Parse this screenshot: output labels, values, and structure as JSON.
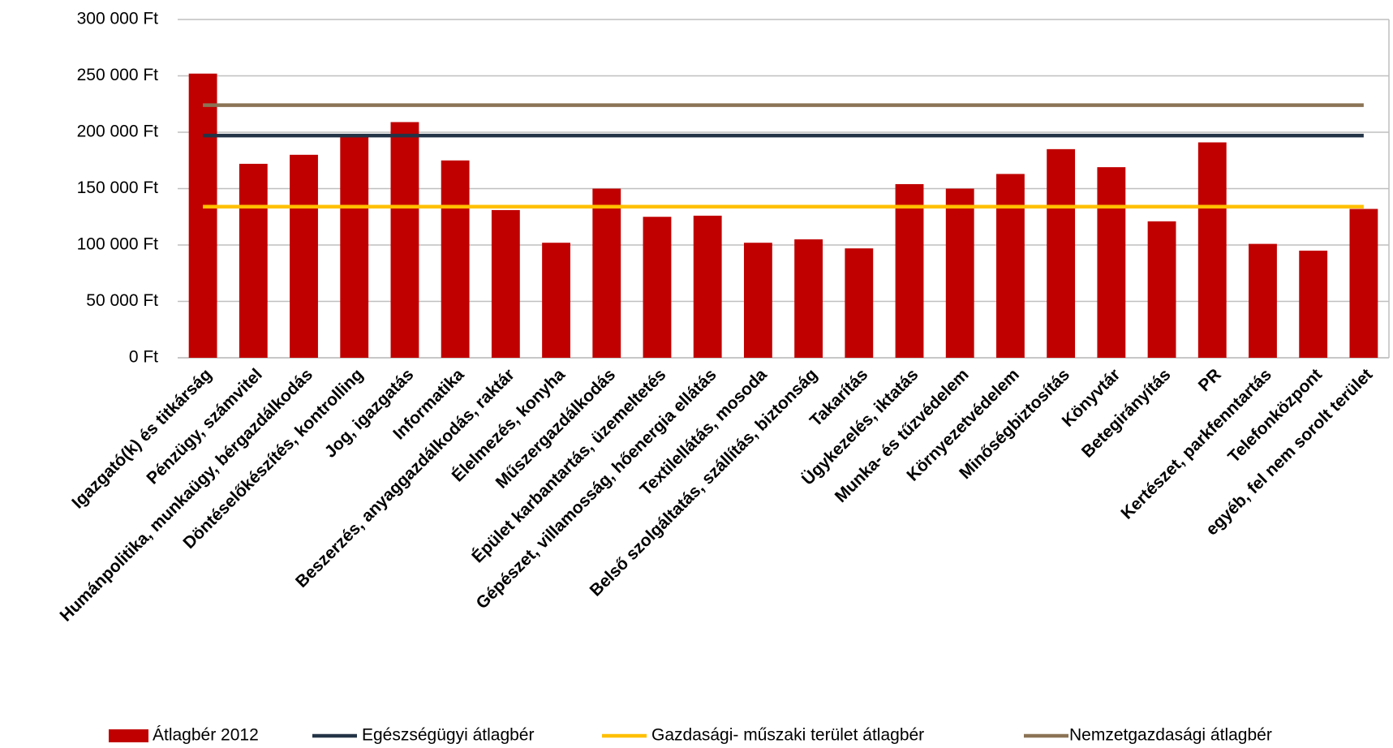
{
  "chart_data": {
    "type": "bar",
    "categories": [
      "Igazgató(k) és titkárság",
      "Pénzügy, számvitel",
      "Humánpolitika, munkaügy, bérgazdálkodás",
      "Döntéselőkészítés, kontrolling",
      "Jog, igazgatás",
      "Informatika",
      "Beszerzés, anyaggazdálkodás, raktár",
      "Élelmezés, konyha",
      "Műszergazdálkodás",
      "Épület karbantartás, üzemeltetés",
      "Gépészet, villamosság, hőenergia ellátás",
      "Textilellátás, mosoda",
      "Belső szolgáltatás, szállítás, biztonság",
      "Takarítás",
      "Ügykezelés, iktatás",
      "Munka- és tűzvédelem",
      "Környezetvédelem",
      "Minőségbiztosítás",
      "Könyvtár",
      "Betegirányítás",
      "PR",
      "Kertészet, parkfenntartás",
      "Telefonközpont",
      "egyéb, fel nem sorolt terület"
    ],
    "series": [
      {
        "name": "Átlagbér 2012",
        "type": "bar",
        "color": "#c00000",
        "values": [
          252000,
          172000,
          180000,
          197000,
          209000,
          175000,
          131000,
          102000,
          150000,
          125000,
          126000,
          102000,
          105000,
          97000,
          154000,
          150000,
          163000,
          185000,
          169000,
          121000,
          191000,
          101000,
          95000,
          132000
        ]
      },
      {
        "name": "Egészségügyi átlagbér",
        "type": "line",
        "color": "#243447",
        "values": [
          197000,
          197000,
          197000,
          197000,
          197000,
          197000,
          197000,
          197000,
          197000,
          197000,
          197000,
          197000,
          197000,
          197000,
          197000,
          197000,
          197000,
          197000,
          197000,
          197000,
          197000,
          197000,
          197000,
          197000
        ]
      },
      {
        "name": "Gazdasági- műszaki terület átlagbér",
        "type": "line",
        "color": "#ffc000",
        "values": [
          134000,
          134000,
          134000,
          134000,
          134000,
          134000,
          134000,
          134000,
          134000,
          134000,
          134000,
          134000,
          134000,
          134000,
          134000,
          134000,
          134000,
          134000,
          134000,
          134000,
          134000,
          134000,
          134000,
          134000
        ]
      },
      {
        "name": "Nemzetgazdasági átlagbér",
        "type": "line",
        "color": "#8b7355",
        "values": [
          224000,
          224000,
          224000,
          224000,
          224000,
          224000,
          224000,
          224000,
          224000,
          224000,
          224000,
          224000,
          224000,
          224000,
          224000,
          224000,
          224000,
          224000,
          224000,
          224000,
          224000,
          224000,
          224000,
          224000
        ]
      }
    ],
    "ylim": [
      0,
      300000
    ],
    "yticks": [
      {
        "value": 0,
        "label": "0 Ft"
      },
      {
        "value": 50000,
        "label": "50 000 Ft"
      },
      {
        "value": 100000,
        "label": "100 000 Ft"
      },
      {
        "value": 150000,
        "label": "150 000 Ft"
      },
      {
        "value": 200000,
        "label": "200 000 Ft"
      },
      {
        "value": 250000,
        "label": "250 000 Ft"
      },
      {
        "value": 300000,
        "label": "300 000 Ft"
      }
    ],
    "grid": true,
    "legend": "bottom"
  }
}
